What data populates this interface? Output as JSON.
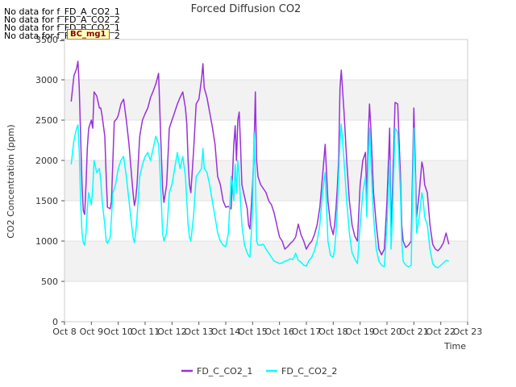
{
  "no_data_messages": [
    "No data for f_FD_A_CO2_1",
    "No data for f_FD_A_CO2_2",
    "No data for f_FD_B_CO2_1",
    "No data for f_FD_B_CO2_2"
  ],
  "badge_label": "BC_mg1",
  "chart_data": {
    "type": "line",
    "title": "Forced Diffusion CO2",
    "xlabel": "Time",
    "ylabel": "CO2 Concentration (ppm)",
    "xlim": [
      8,
      23
    ],
    "ylim": [
      0,
      3500
    ],
    "x_ticks": [
      8,
      9,
      10,
      11,
      12,
      13,
      14,
      15,
      16,
      17,
      18,
      19,
      20,
      21,
      22,
      23
    ],
    "x_tick_labels": [
      "Oct 8",
      "Oct 9",
      "Oct 10",
      "Oct 11",
      "Oct 12",
      "Oct 13",
      "Oct 14",
      "Oct 15",
      "Oct 16",
      "Oct 17",
      "Oct 18",
      "Oct 19",
      "Oct 20",
      "Oct 21",
      "Oct 22",
      "Oct 23"
    ],
    "y_ticks": [
      0,
      500,
      1000,
      1500,
      2000,
      2500,
      3000,
      3500
    ],
    "grid": "horizontal bands",
    "legend_position": "bottom-center",
    "series": [
      {
        "name": "FD_C_CO2_1",
        "color": "#9b30d9",
        "x": [
          8.25,
          8.35,
          8.45,
          8.5,
          8.55,
          8.6,
          8.65,
          8.7,
          8.75,
          8.8,
          8.85,
          8.9,
          9.0,
          9.05,
          9.1,
          9.2,
          9.3,
          9.35,
          9.4,
          9.5,
          9.55,
          9.6,
          9.7,
          9.75,
          9.8,
          9.85,
          9.9,
          9.95,
          10.0,
          10.1,
          10.2,
          10.3,
          10.4,
          10.5,
          10.55,
          10.6,
          10.65,
          10.7,
          10.8,
          10.9,
          11.0,
          11.1,
          11.2,
          11.3,
          11.4,
          11.5,
          11.55,
          11.6,
          11.65,
          11.7,
          11.8,
          11.9,
          12.0,
          12.1,
          12.2,
          12.3,
          12.4,
          12.5,
          12.55,
          12.6,
          12.65,
          12.7,
          12.8,
          12.9,
          13.0,
          13.1,
          13.15,
          13.2,
          13.3,
          13.4,
          13.5,
          13.6,
          13.7,
          13.8,
          13.9,
          14.0,
          14.1,
          14.2,
          14.25,
          14.3,
          14.35,
          14.4,
          14.45,
          14.5,
          14.55,
          14.6,
          14.7,
          14.8,
          14.85,
          14.9,
          15.0,
          15.05,
          15.1,
          15.15,
          15.2,
          15.3,
          15.4,
          15.5,
          15.6,
          15.7,
          15.8,
          15.9,
          16.0,
          16.1,
          16.2,
          16.3,
          16.4,
          16.5,
          16.6,
          16.7,
          16.8,
          16.9,
          17.0,
          17.1,
          17.2,
          17.3,
          17.4,
          17.5,
          17.6,
          17.7,
          17.8,
          17.9,
          18.0,
          18.05,
          18.1,
          18.15,
          18.2,
          18.25,
          18.3,
          18.4,
          18.5,
          18.6,
          18.7,
          18.8,
          18.9,
          19.0,
          19.1,
          19.2,
          19.25,
          19.3,
          19.35,
          19.4,
          19.5,
          19.6,
          19.7,
          19.8,
          19.9,
          20.0,
          20.1,
          20.15,
          20.2,
          20.3,
          20.4,
          20.5,
          20.55,
          20.6,
          20.7,
          20.8,
          20.9,
          21.0,
          21.05,
          21.1,
          21.2,
          21.3,
          21.35,
          21.4,
          21.5,
          21.6,
          21.7,
          21.8,
          21.9,
          22.0,
          22.1,
          22.2,
          22.3
        ],
        "y": [
          2730,
          3050,
          3140,
          3230,
          2900,
          2300,
          1700,
          1380,
          1330,
          1700,
          2150,
          2400,
          2500,
          2400,
          2850,
          2800,
          2650,
          2650,
          2550,
          2300,
          1800,
          1420,
          1400,
          1500,
          2000,
          2480,
          2500,
          2520,
          2560,
          2700,
          2760,
          2500,
          2200,
          1800,
          1600,
          1440,
          1520,
          1700,
          2300,
          2500,
          2580,
          2650,
          2780,
          2860,
          2950,
          3080,
          2600,
          2100,
          1650,
          1480,
          1700,
          2400,
          2500,
          2600,
          2700,
          2780,
          2850,
          2650,
          2450,
          2000,
          1700,
          1600,
          2100,
          2700,
          2760,
          3010,
          3200,
          2900,
          2780,
          2600,
          2420,
          2200,
          1800,
          1700,
          1500,
          1420,
          1430,
          1400,
          1800,
          2200,
          2430,
          2000,
          2500,
          2600,
          2200,
          1700,
          1550,
          1400,
          1200,
          1150,
          1700,
          2100,
          2850,
          2000,
          1800,
          1700,
          1650,
          1600,
          1500,
          1450,
          1350,
          1200,
          1050,
          1000,
          900,
          930,
          970,
          1000,
          1050,
          1210,
          1080,
          1000,
          900,
          960,
          1000,
          1080,
          1200,
          1420,
          1800,
          2200,
          1500,
          1200,
          1080,
          1200,
          1400,
          1650,
          2000,
          2900,
          3120,
          2600,
          2000,
          1500,
          1200,
          1060,
          1000,
          1700,
          2000,
          2100,
          1500,
          2300,
          2700,
          2400,
          1600,
          1200,
          900,
          830,
          900,
          1500,
          2400,
          1100,
          1600,
          2720,
          2700,
          1800,
          1200,
          1000,
          920,
          950,
          1000,
          2650,
          2000,
          1300,
          1600,
          1980,
          1900,
          1700,
          1600,
          1200,
          960,
          900,
          880,
          920,
          980,
          1100,
          960
        ]
      },
      {
        "name": "FD_C_CO2_2",
        "color": "#00ffff",
        "x": [
          8.25,
          8.35,
          8.45,
          8.5,
          8.55,
          8.6,
          8.65,
          8.7,
          8.75,
          8.8,
          8.85,
          8.9,
          9.0,
          9.05,
          9.1,
          9.2,
          9.3,
          9.35,
          9.4,
          9.5,
          9.55,
          9.6,
          9.7,
          9.75,
          9.8,
          9.85,
          9.9,
          9.95,
          10.0,
          10.1,
          10.2,
          10.3,
          10.4,
          10.5,
          10.55,
          10.6,
          10.65,
          10.7,
          10.8,
          10.9,
          11.0,
          11.1,
          11.2,
          11.3,
          11.4,
          11.5,
          11.55,
          11.6,
          11.65,
          11.7,
          11.8,
          11.9,
          12.0,
          12.1,
          12.2,
          12.3,
          12.4,
          12.5,
          12.55,
          12.6,
          12.65,
          12.7,
          12.8,
          12.9,
          13.0,
          13.1,
          13.15,
          13.2,
          13.3,
          13.4,
          13.5,
          13.6,
          13.7,
          13.8,
          13.9,
          14.0,
          14.1,
          14.2,
          14.25,
          14.3,
          14.35,
          14.4,
          14.45,
          14.5,
          14.55,
          14.6,
          14.7,
          14.8,
          14.85,
          14.9,
          15.0,
          15.05,
          15.1,
          15.15,
          15.2,
          15.3,
          15.4,
          15.5,
          15.6,
          15.7,
          15.8,
          15.9,
          16.0,
          16.1,
          16.2,
          16.3,
          16.4,
          16.5,
          16.6,
          16.7,
          16.8,
          16.9,
          17.0,
          17.1,
          17.2,
          17.3,
          17.4,
          17.5,
          17.6,
          17.7,
          17.8,
          17.9,
          18.0,
          18.05,
          18.1,
          18.15,
          18.2,
          18.25,
          18.3,
          18.4,
          18.5,
          18.6,
          18.7,
          18.8,
          18.9,
          19.0,
          19.1,
          19.2,
          19.25,
          19.3,
          19.35,
          19.4,
          19.5,
          19.6,
          19.7,
          19.8,
          19.9,
          20.0,
          20.1,
          20.15,
          20.2,
          20.3,
          20.4,
          20.5,
          20.55,
          20.6,
          20.7,
          20.8,
          20.9,
          21.0,
          21.05,
          21.1,
          21.2,
          21.3,
          21.35,
          21.4,
          21.5,
          21.6,
          21.7,
          21.8,
          21.9,
          22.0,
          22.1,
          22.2,
          22.3
        ],
        "y": [
          1950,
          2250,
          2400,
          2440,
          2100,
          1500,
          1100,
          980,
          950,
          1100,
          1400,
          1600,
          1450,
          1650,
          2000,
          1850,
          1900,
          1750,
          1500,
          1200,
          1000,
          970,
          1050,
          1300,
          1600,
          1650,
          1700,
          1800,
          1900,
          2000,
          2050,
          1800,
          1500,
          1200,
          1050,
          980,
          1100,
          1300,
          1800,
          1950,
          2050,
          2100,
          2000,
          2150,
          2300,
          2200,
          1900,
          1500,
          1100,
          1000,
          1100,
          1600,
          1700,
          1900,
          2100,
          1900,
          2050,
          1800,
          1500,
          1200,
          1050,
          1000,
          1300,
          1800,
          1850,
          1900,
          2150,
          1900,
          1850,
          1700,
          1500,
          1300,
          1100,
          1000,
          950,
          930,
          1100,
          1800,
          1700,
          1500,
          1950,
          1600,
          2000,
          1800,
          1500,
          1200,
          950,
          850,
          820,
          800,
          1400,
          2350,
          1800,
          1000,
          950,
          950,
          960,
          900,
          850,
          800,
          750,
          740,
          720,
          730,
          750,
          760,
          780,
          770,
          850,
          760,
          740,
          700,
          690,
          760,
          800,
          880,
          1000,
          1200,
          1600,
          1850,
          1000,
          820,
          800,
          900,
          1100,
          1400,
          1800,
          2250,
          2450,
          2000,
          1500,
          1100,
          850,
          780,
          720,
          1200,
          1600,
          1800,
          1300,
          2000,
          2400,
          2000,
          1300,
          900,
          750,
          700,
          680,
          1200,
          2000,
          900,
          1300,
          2400,
          2350,
          1600,
          1000,
          750,
          700,
          680,
          700,
          2400,
          1800,
          1100,
          1300,
          1600,
          1500,
          1300,
          1200,
          900,
          720,
          680,
          670,
          700,
          730,
          760,
          750
        ]
      }
    ]
  }
}
